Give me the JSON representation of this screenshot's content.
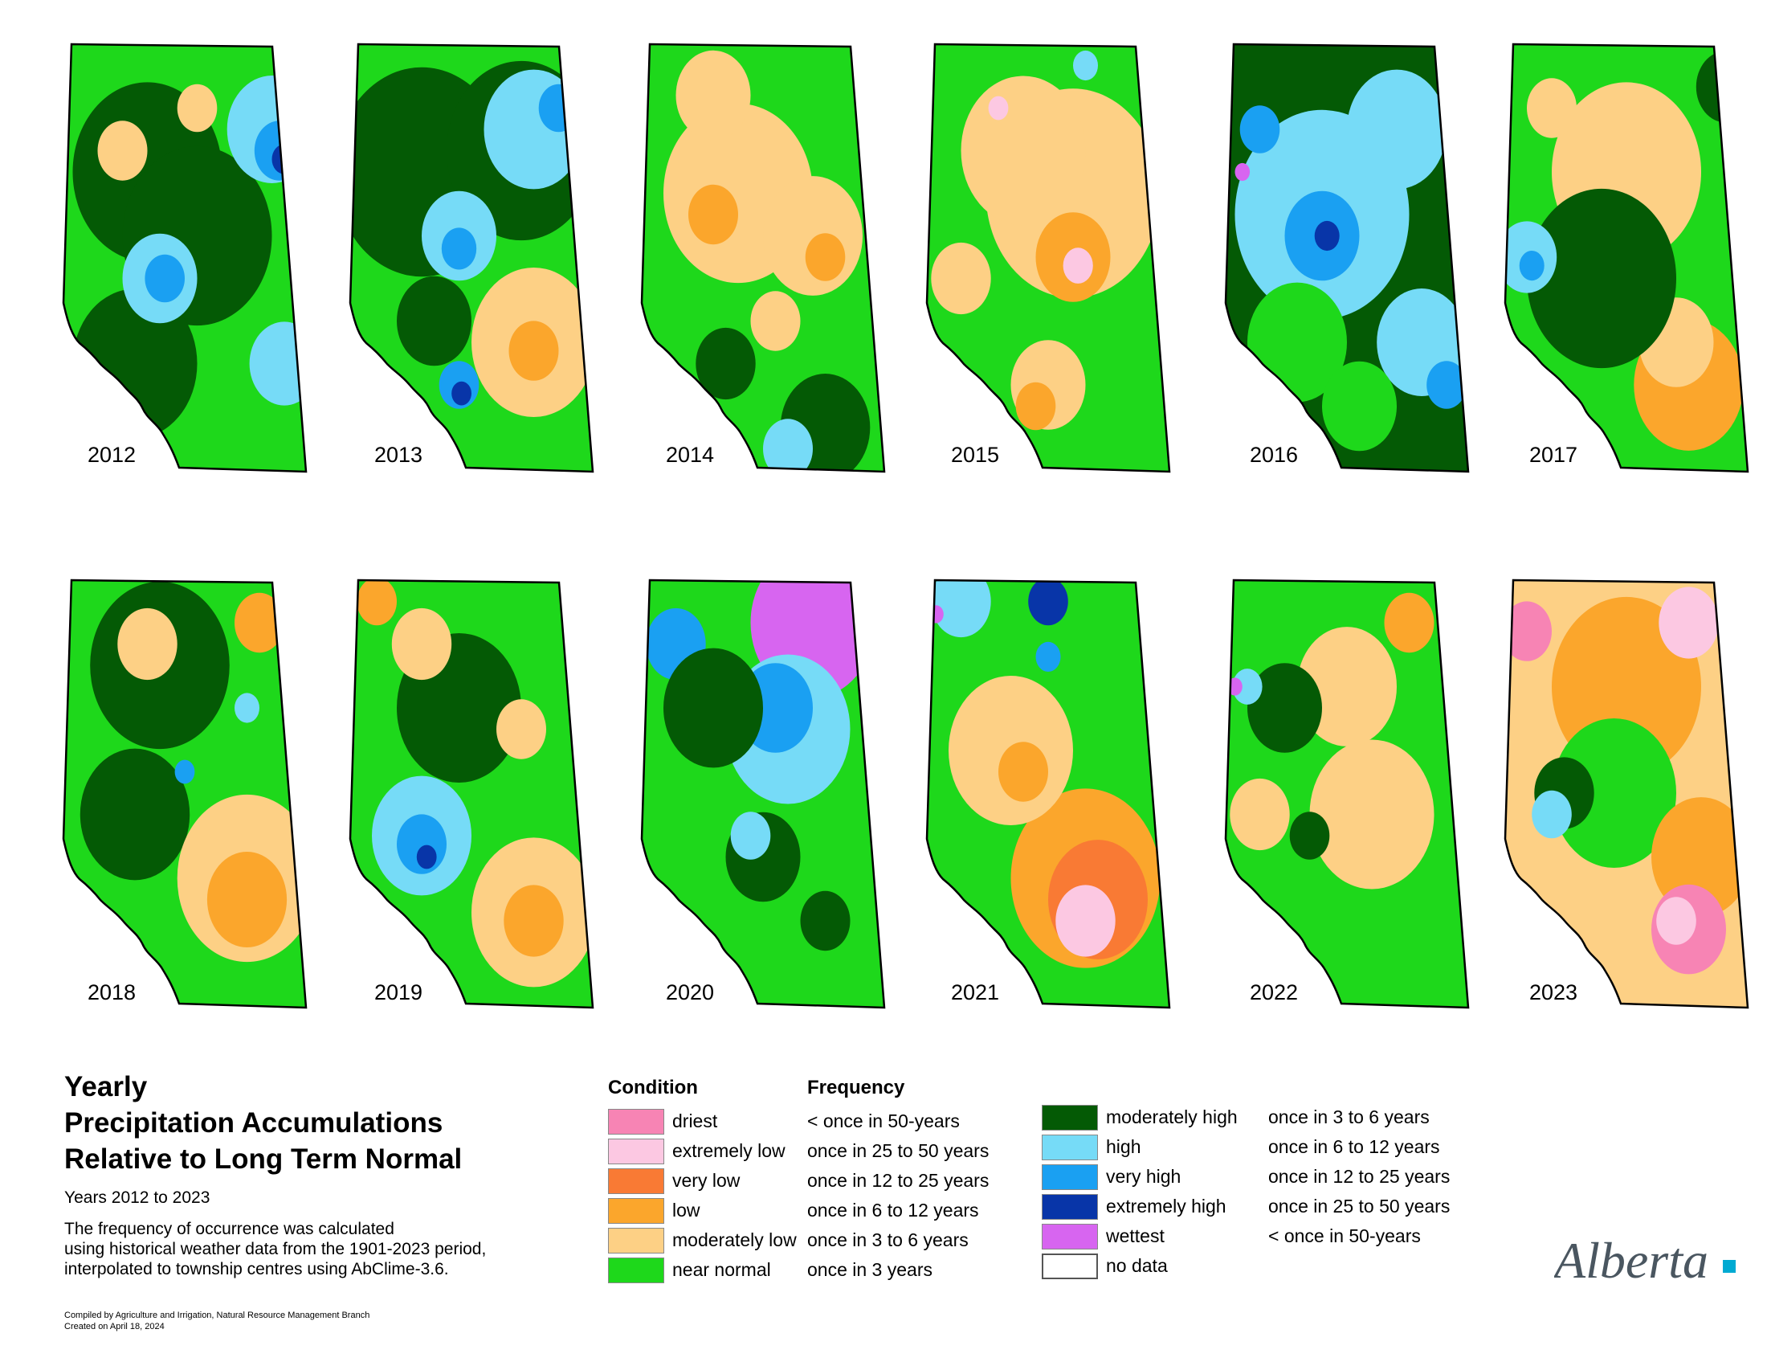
{
  "years": [
    "2012",
    "2013",
    "2014",
    "2015",
    "2016",
    "2017",
    "2018",
    "2019",
    "2020",
    "2021",
    "2022",
    "2023"
  ],
  "title_lines": [
    "Yearly",
    "Precipitation Accumulations",
    "Relative to Long Term Normal"
  ],
  "subtitle": "Years 2012 to 2023",
  "description": [
    "The frequency of occurrence was calculated",
    "using historical weather data from the 1901-2023 period,",
    "interpolated to township centres using AbClime-3.6."
  ],
  "credits": [
    "Compiled by Agriculture and Irrigation, Natural Resource Management Branch",
    "Created on April 18, 2024"
  ],
  "legend": {
    "condition_header": "Condition",
    "frequency_header": "Frequency",
    "left": [
      {
        "condition": "driest",
        "frequency": "< once in 50-years",
        "color": "#f784b4"
      },
      {
        "condition": "extremely low",
        "frequency": "once in 25 to 50 years",
        "color": "#fcc8e2"
      },
      {
        "condition": "very low",
        "frequency": "once in 12 to 25 years",
        "color": "#f97a34"
      },
      {
        "condition": "low",
        "frequency": "once in 6 to 12 years",
        "color": "#fba62c"
      },
      {
        "condition": "moderately low",
        "frequency": "once in 3 to 6 years",
        "color": "#fdd085"
      },
      {
        "condition": "near normal",
        "frequency": "once in 3 years",
        "color": "#1ed81b"
      }
    ],
    "right": [
      {
        "condition": "moderately high",
        "frequency": "once in 3 to 6 years",
        "color": "#045a05"
      },
      {
        "condition": "high",
        "frequency": "once in 6 to 12 years",
        "color": "#76dbf7"
      },
      {
        "condition": "very high",
        "frequency": "once in 12 to 25 years",
        "color": "#1aa0f2"
      },
      {
        "condition": "extremely high",
        "frequency": "once in 25 to 50 years",
        "color": "#0835a8"
      },
      {
        "condition": "wettest",
        "frequency": "< once in 50-years",
        "color": "#d765f0"
      },
      {
        "condition": "no data",
        "frequency": "",
        "color": "#ffffff"
      }
    ]
  },
  "maps": [
    {
      "year": "2012",
      "base": "#1ed81b",
      "blobs": [
        [
          "#045a05",
          0.35,
          0.3,
          0.3
        ],
        [
          "#045a05",
          0.55,
          0.45,
          0.3
        ],
        [
          "#045a05",
          0.3,
          0.75,
          0.25
        ],
        [
          "#76dbf7",
          0.85,
          0.2,
          0.18
        ],
        [
          "#1aa0f2",
          0.88,
          0.25,
          0.1
        ],
        [
          "#0835a8",
          0.9,
          0.27,
          0.05
        ],
        [
          "#76dbf7",
          0.4,
          0.55,
          0.15
        ],
        [
          "#1aa0f2",
          0.42,
          0.55,
          0.08
        ],
        [
          "#76dbf7",
          0.9,
          0.75,
          0.14
        ],
        [
          "#fdd085",
          0.25,
          0.25,
          0.1
        ],
        [
          "#fdd085",
          0.55,
          0.15,
          0.08
        ]
      ]
    },
    {
      "year": "2013",
      "base": "#1ed81b",
      "blobs": [
        [
          "#045a05",
          0.3,
          0.3,
          0.35
        ],
        [
          "#045a05",
          0.7,
          0.25,
          0.3
        ],
        [
          "#76dbf7",
          0.75,
          0.2,
          0.2
        ],
        [
          "#1aa0f2",
          0.85,
          0.15,
          0.08
        ],
        [
          "#76dbf7",
          0.45,
          0.45,
          0.15
        ],
        [
          "#1aa0f2",
          0.45,
          0.48,
          0.07
        ],
        [
          "#fdd085",
          0.75,
          0.7,
          0.25
        ],
        [
          "#fba62c",
          0.75,
          0.72,
          0.1
        ],
        [
          "#1aa0f2",
          0.45,
          0.8,
          0.08
        ],
        [
          "#0835a8",
          0.46,
          0.82,
          0.04
        ],
        [
          "#045a05",
          0.35,
          0.65,
          0.15
        ]
      ]
    },
    {
      "year": "2014",
      "base": "#1ed81b",
      "blobs": [
        [
          "#fdd085",
          0.4,
          0.35,
          0.3
        ],
        [
          "#fdd085",
          0.7,
          0.45,
          0.2
        ],
        [
          "#fba62c",
          0.3,
          0.4,
          0.1
        ],
        [
          "#fba62c",
          0.75,
          0.5,
          0.08
        ],
        [
          "#fdd085",
          0.3,
          0.12,
          0.15
        ],
        [
          "#045a05",
          0.75,
          0.9,
          0.18
        ],
        [
          "#76dbf7",
          0.6,
          0.95,
          0.1
        ],
        [
          "#045a05",
          0.35,
          0.75,
          0.12
        ],
        [
          "#fdd085",
          0.55,
          0.65,
          0.1
        ]
      ]
    },
    {
      "year": "2015",
      "base": "#1ed81b",
      "blobs": [
        [
          "#fdd085",
          0.6,
          0.35,
          0.35
        ],
        [
          "#fdd085",
          0.4,
          0.25,
          0.25
        ],
        [
          "#fba62c",
          0.6,
          0.5,
          0.15
        ],
        [
          "#fcc8e2",
          0.62,
          0.52,
          0.06
        ],
        [
          "#fdd085",
          0.5,
          0.8,
          0.15
        ],
        [
          "#fba62c",
          0.45,
          0.85,
          0.08
        ],
        [
          "#fdd085",
          0.15,
          0.55,
          0.12
        ],
        [
          "#76dbf7",
          0.65,
          0.05,
          0.05
        ],
        [
          "#fcc8e2",
          0.3,
          0.15,
          0.04
        ]
      ]
    },
    {
      "year": "2016",
      "base": "#045a05",
      "blobs": [
        [
          "#76dbf7",
          0.4,
          0.4,
          0.35
        ],
        [
          "#1aa0f2",
          0.4,
          0.45,
          0.15
        ],
        [
          "#0835a8",
          0.42,
          0.45,
          0.05
        ],
        [
          "#76dbf7",
          0.7,
          0.2,
          0.2
        ],
        [
          "#76dbf7",
          0.8,
          0.7,
          0.18
        ],
        [
          "#1aa0f2",
          0.9,
          0.8,
          0.08
        ],
        [
          "#1ed81b",
          0.3,
          0.7,
          0.2
        ],
        [
          "#1ed81b",
          0.55,
          0.85,
          0.15
        ],
        [
          "#1aa0f2",
          0.15,
          0.2,
          0.08
        ],
        [
          "#d765f0",
          0.08,
          0.3,
          0.03
        ]
      ]
    },
    {
      "year": "2017",
      "base": "#1ed81b",
      "blobs": [
        [
          "#fdd085",
          0.5,
          0.3,
          0.3
        ],
        [
          "#fba62c",
          0.75,
          0.8,
          0.22
        ],
        [
          "#fdd085",
          0.7,
          0.7,
          0.15
        ],
        [
          "#045a05",
          0.4,
          0.55,
          0.3
        ],
        [
          "#76dbf7",
          0.1,
          0.5,
          0.12
        ],
        [
          "#1aa0f2",
          0.12,
          0.52,
          0.05
        ],
        [
          "#fdd085",
          0.2,
          0.15,
          0.1
        ],
        [
          "#045a05",
          0.9,
          0.1,
          0.12
        ]
      ]
    },
    {
      "year": "2018",
      "base": "#1ed81b",
      "blobs": [
        [
          "#045a05",
          0.4,
          0.2,
          0.28
        ],
        [
          "#045a05",
          0.3,
          0.55,
          0.22
        ],
        [
          "#fdd085",
          0.75,
          0.7,
          0.28
        ],
        [
          "#fba62c",
          0.75,
          0.75,
          0.16
        ],
        [
          "#fba62c",
          0.8,
          0.1,
          0.1
        ],
        [
          "#fdd085",
          0.35,
          0.15,
          0.12
        ],
        [
          "#76dbf7",
          0.75,
          0.3,
          0.05
        ],
        [
          "#1aa0f2",
          0.5,
          0.45,
          0.04
        ]
      ]
    },
    {
      "year": "2019",
      "base": "#1ed81b",
      "blobs": [
        [
          "#045a05",
          0.45,
          0.3,
          0.25
        ],
        [
          "#76dbf7",
          0.3,
          0.6,
          0.2
        ],
        [
          "#1aa0f2",
          0.3,
          0.62,
          0.1
        ],
        [
          "#0835a8",
          0.32,
          0.65,
          0.04
        ],
        [
          "#fdd085",
          0.75,
          0.78,
          0.25
        ],
        [
          "#fba62c",
          0.75,
          0.8,
          0.12
        ],
        [
          "#fdd085",
          0.3,
          0.15,
          0.12
        ],
        [
          "#fba62c",
          0.12,
          0.05,
          0.08
        ],
        [
          "#fdd085",
          0.7,
          0.35,
          0.1
        ]
      ]
    },
    {
      "year": "2020",
      "base": "#1ed81b",
      "blobs": [
        [
          "#d765f0",
          0.7,
          0.1,
          0.25
        ],
        [
          "#76dbf7",
          0.6,
          0.35,
          0.25
        ],
        [
          "#1aa0f2",
          0.55,
          0.3,
          0.15
        ],
        [
          "#1aa0f2",
          0.15,
          0.15,
          0.12
        ],
        [
          "#045a05",
          0.3,
          0.3,
          0.2
        ],
        [
          "#045a05",
          0.5,
          0.65,
          0.15
        ],
        [
          "#045a05",
          0.75,
          0.8,
          0.1
        ],
        [
          "#76dbf7",
          0.45,
          0.6,
          0.08
        ]
      ]
    },
    {
      "year": "2021",
      "base": "#1ed81b",
      "blobs": [
        [
          "#fba62c",
          0.65,
          0.7,
          0.3
        ],
        [
          "#f97a34",
          0.7,
          0.75,
          0.2
        ],
        [
          "#fcc8e2",
          0.65,
          0.8,
          0.12
        ],
        [
          "#fdd085",
          0.35,
          0.4,
          0.25
        ],
        [
          "#fba62c",
          0.4,
          0.45,
          0.1
        ],
        [
          "#76dbf7",
          0.15,
          0.05,
          0.12
        ],
        [
          "#0835a8",
          0.5,
          0.05,
          0.08
        ],
        [
          "#1aa0f2",
          0.5,
          0.18,
          0.05
        ],
        [
          "#d765f0",
          0.05,
          0.08,
          0.03
        ]
      ]
    },
    {
      "year": "2022",
      "base": "#1ed81b",
      "blobs": [
        [
          "#fdd085",
          0.6,
          0.55,
          0.25
        ],
        [
          "#fdd085",
          0.5,
          0.25,
          0.2
        ],
        [
          "#fba62c",
          0.75,
          0.1,
          0.1
        ],
        [
          "#045a05",
          0.25,
          0.3,
          0.15
        ],
        [
          "#76dbf7",
          0.1,
          0.25,
          0.06
        ],
        [
          "#d765f0",
          0.05,
          0.25,
          0.03
        ],
        [
          "#fdd085",
          0.15,
          0.55,
          0.12
        ],
        [
          "#045a05",
          0.35,
          0.6,
          0.08
        ]
      ]
    },
    {
      "year": "2023",
      "base": "#fdd085",
      "blobs": [
        [
          "#fba62c",
          0.5,
          0.25,
          0.3
        ],
        [
          "#f784b4",
          0.1,
          0.12,
          0.1
        ],
        [
          "#fcc8e2",
          0.75,
          0.1,
          0.12
        ],
        [
          "#1ed81b",
          0.45,
          0.5,
          0.25
        ],
        [
          "#045a05",
          0.25,
          0.5,
          0.12
        ],
        [
          "#76dbf7",
          0.2,
          0.55,
          0.08
        ],
        [
          "#fba62c",
          0.8,
          0.65,
          0.2
        ],
        [
          "#f784b4",
          0.75,
          0.82,
          0.15
        ],
        [
          "#fcc8e2",
          0.7,
          0.8,
          0.08
        ]
      ]
    }
  ]
}
